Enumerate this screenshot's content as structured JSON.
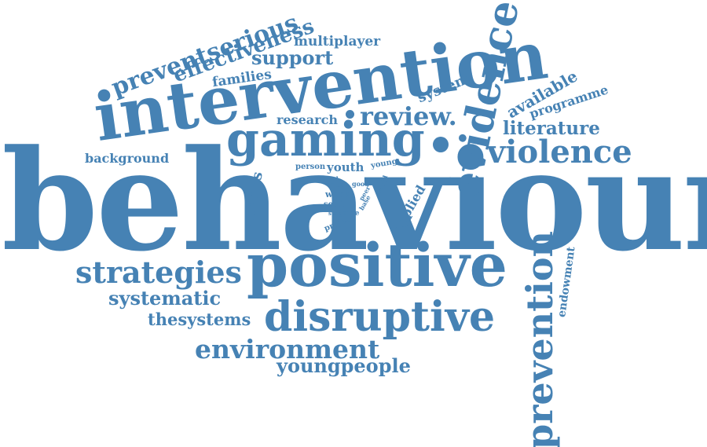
{
  "words": {
    "behaviour": "behaviour",
    "intervention": "intervention",
    "positive": "positive",
    "gaming": "gaming",
    "evidence": "evidence",
    "violence": "violence",
    "disruptive": "disruptive",
    "prevention": "prevention",
    "strategies": "strategies",
    "environment": "environment",
    "review": "review.",
    "youngpeople": "youngpeople",
    "systematic": "systematic",
    "thesystems": "thesystems",
    "preventserious": "preventserious",
    "effectiveness": "effectiveness",
    "support": "support",
    "literature": "literature",
    "multiplayer": "multiplayer",
    "families": "families",
    "research": "research",
    "system": "system",
    "available": "available",
    "programme": "programme",
    "background": "background",
    "serious": "serious",
    "youth": "youth",
    "person": "person",
    "young": "young",
    "applied": "applied",
    "endowment": "endowment",
    "fund": "fund",
    "most": "most",
    "work": "work",
    "setting": "setting",
    "step": "step",
    "game": "game",
    "project": "project",
    "good": "good",
    "peer": "peer",
    "base": "base",
    "child": "child"
  },
  "colors": {
    "word": "#4682b4",
    "background": "#ffffff"
  }
}
